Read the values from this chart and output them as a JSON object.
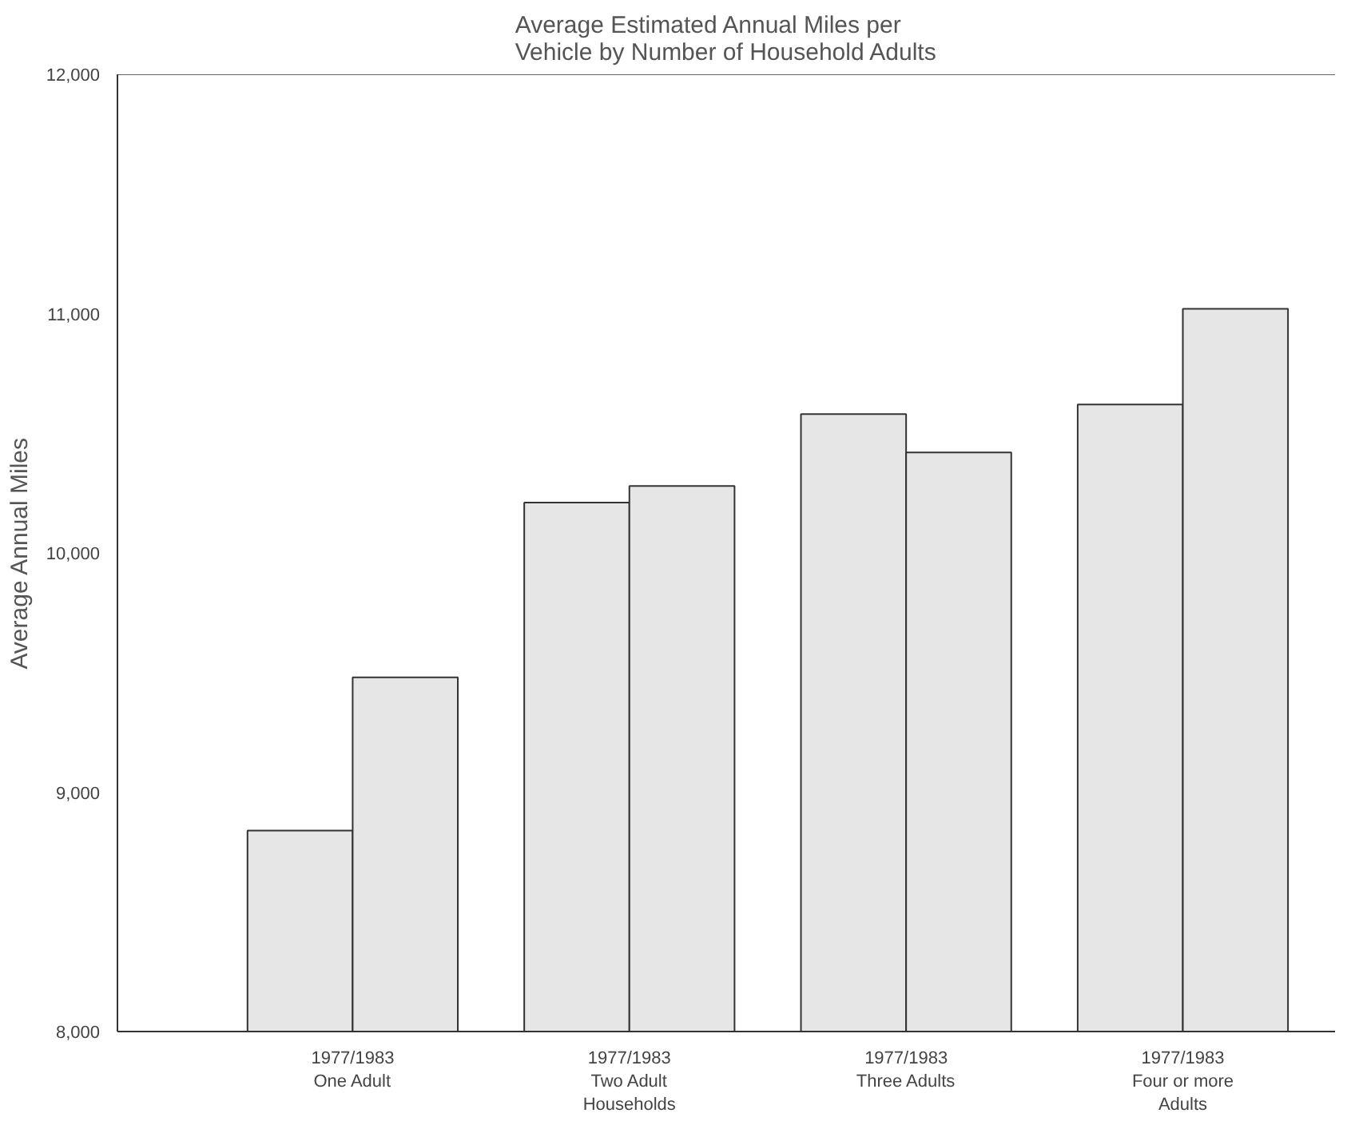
{
  "chart_data": {
    "type": "bar",
    "title": "Average Estimated Annual Miles per\nVehicle by Number of Household Adults",
    "ylabel": "Average Annual Miles",
    "categories": [
      "1977/1983\nOne Adult",
      "1977/1983\nTwo Adult\nHouseholds",
      "1977/1983\nThree Adults",
      "1977/1983\nFour or more\nAdults"
    ],
    "series": [
      {
        "color": "#e6e6e6",
        "values": [
          8840,
          10210,
          10580,
          10620
        ]
      },
      {
        "color": "#e6e6e6",
        "values": [
          9480,
          10280,
          10420,
          11020
        ]
      }
    ],
    "ylim": [
      8000,
      12000
    ],
    "yticks": [
      {
        "value": 8000,
        "label": "8,000"
      },
      {
        "value": 9000,
        "label": "9,000"
      },
      {
        "value": 10000,
        "label": "10,000"
      },
      {
        "value": 11000,
        "label": "11,000"
      },
      {
        "value": 12000,
        "label": "12,000"
      }
    ],
    "grid": false
  }
}
